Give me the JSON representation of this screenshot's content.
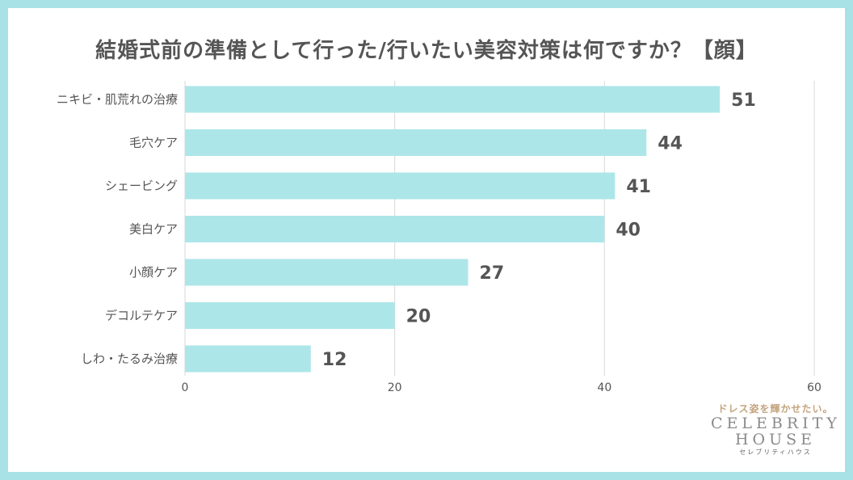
{
  "title": "結婚式前の準備として行った/行いたい美容対策は何ですか？【顔】",
  "colors": {
    "bar": "#ade6e9",
    "frame": "#a8e1e6",
    "text": "#555555",
    "grid": "#d9d9d9"
  },
  "chart_data": {
    "type": "bar",
    "orientation": "horizontal",
    "title": "結婚式前の準備として行った/行いたい美容対策は何ですか？【顔】",
    "categories": [
      "ニキビ・肌荒れの治療",
      "毛穴ケア",
      "シェービング",
      "美白ケア",
      "小顔ケア",
      "デコルテケア",
      "しわ・たるみ治療"
    ],
    "values": [
      51,
      44,
      41,
      40,
      27,
      20,
      12
    ],
    "xlim": [
      0,
      60
    ],
    "xticks": [
      0,
      20,
      40,
      60
    ],
    "grid": true,
    "legend": "none"
  },
  "brand": {
    "tagline": "ドレス姿を輝かせたい。",
    "name_line1": "CELEBRITY",
    "name_line2": "HOUSE",
    "subline": "セレブリティハウス"
  }
}
